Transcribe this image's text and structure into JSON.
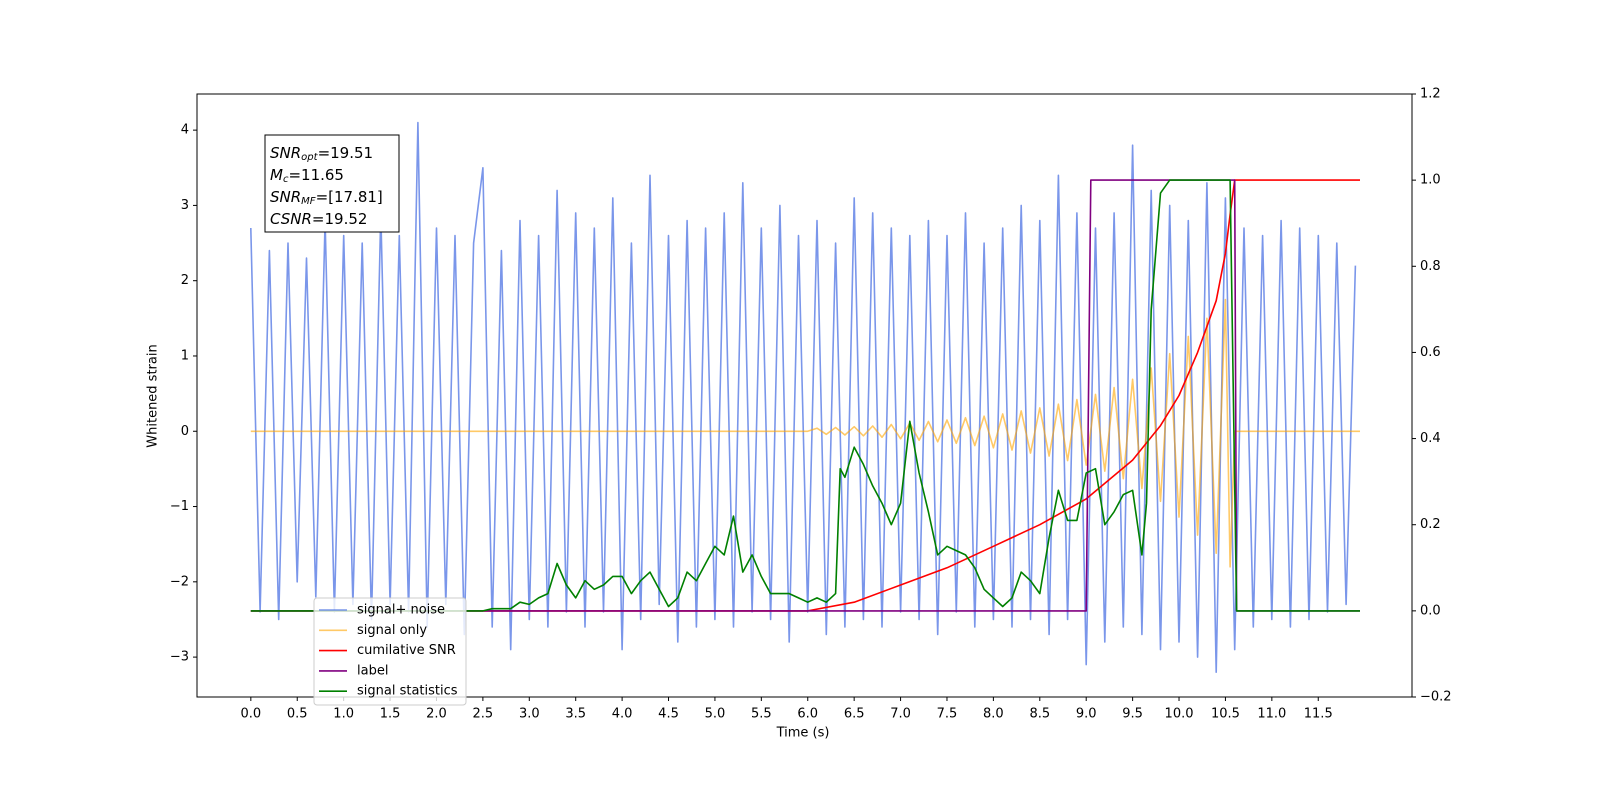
{
  "chart_data": {
    "type": "line",
    "x_label": "Time (s)",
    "y_label": "Whitened strain",
    "xlim": [
      -0.58,
      12.51
    ],
    "ylim": [
      -3.53,
      4.48
    ],
    "y2lim": [
      -0.2,
      1.2
    ],
    "xticks": [
      {
        "value": 0,
        "label": "0.0"
      },
      0.5,
      {
        "value": 1,
        "label": "1.0"
      },
      1.5,
      {
        "value": 2,
        "label": "2.0"
      },
      2.5,
      {
        "value": 3,
        "label": "3.0"
      },
      3.5,
      {
        "value": 4,
        "label": "4.0"
      },
      4.5,
      {
        "value": 5,
        "label": "5.0"
      },
      5.5,
      {
        "value": 6,
        "label": "6.0"
      },
      6.5,
      {
        "value": 7,
        "label": "7.0"
      },
      7.5,
      {
        "value": 8,
        "label": "8.0"
      },
      8.5,
      {
        "value": 9,
        "label": "9.0"
      },
      9.5,
      {
        "value": 10,
        "label": "10.0"
      },
      10.5,
      {
        "value": 11,
        "label": "11.0"
      },
      11.5
    ],
    "yticks": [
      {
        "value": -3,
        "label": "−3"
      },
      {
        "value": -2,
        "label": "−2"
      },
      {
        "value": -1,
        "label": "−1"
      },
      0,
      1,
      2,
      3,
      4
    ],
    "y2ticks": [
      {
        "value": -0.2,
        "label": "−0.2"
      },
      {
        "value": 0,
        "label": "0.0"
      },
      0.2,
      0.4,
      0.6,
      0.8,
      {
        "value": 1,
        "label": "1.0"
      },
      1.2
    ],
    "legend_loc": "lower left",
    "annotations": [
      {
        "var": "SNR",
        "sub": "opt",
        "text": "=19.51"
      },
      {
        "var": "M",
        "sub": "c",
        "text": "=11.65"
      },
      {
        "var": "SNR",
        "sub": "MF",
        "text": "=[17.81]"
      },
      {
        "var": "CSNR",
        "sub": null,
        "text": "=19.52"
      }
    ],
    "series": [
      {
        "name": "signal+ noise",
        "color": "#4169e1",
        "alpha": 0.7,
        "axis": "y",
        "x": [
          0.0,
          0.1,
          0.2,
          0.3,
          0.4,
          0.5,
          0.6,
          0.7,
          0.8,
          0.9,
          1.0,
          1.1,
          1.2,
          1.3,
          1.4,
          1.5,
          1.6,
          1.7,
          1.8,
          1.9,
          2.0,
          2.1,
          2.2,
          2.3,
          2.4,
          2.5,
          2.6,
          2.7,
          2.8,
          2.9,
          3.0,
          3.1,
          3.2,
          3.3,
          3.4,
          3.5,
          3.6,
          3.7,
          3.8,
          3.9,
          4.0,
          4.1,
          4.2,
          4.3,
          4.4,
          4.5,
          4.6,
          4.7,
          4.8,
          4.9,
          5.0,
          5.1,
          5.2,
          5.3,
          5.4,
          5.5,
          5.6,
          5.7,
          5.8,
          5.9,
          6.0,
          6.1,
          6.2,
          6.3,
          6.4,
          6.5,
          6.6,
          6.7,
          6.8,
          6.9,
          7.0,
          7.1,
          7.2,
          7.3,
          7.4,
          7.5,
          7.6,
          7.7,
          7.8,
          7.9,
          8.0,
          8.1,
          8.2,
          8.3,
          8.4,
          8.5,
          8.6,
          8.7,
          8.8,
          8.9,
          9.0,
          9.1,
          9.2,
          9.3,
          9.4,
          9.5,
          9.6,
          9.7,
          9.8,
          9.9,
          10.0,
          10.1,
          10.2,
          10.3,
          10.4,
          10.5,
          10.6,
          10.7,
          10.8,
          10.9,
          11.0,
          11.1,
          11.2,
          11.3,
          11.4,
          11.5,
          11.6,
          11.7,
          11.8,
          11.9
        ],
        "values": [
          2.7,
          -2.4,
          2.4,
          -2.5,
          2.5,
          -2.0,
          2.3,
          -2.2,
          2.8,
          -2.4,
          2.6,
          -2.3,
          2.5,
          -2.5,
          2.9,
          -2.3,
          2.6,
          -2.4,
          4.1,
          -2.6,
          2.7,
          -2.3,
          2.6,
          -2.7,
          2.5,
          3.5,
          -2.6,
          2.4,
          -2.9,
          2.8,
          -2.5,
          2.6,
          -2.6,
          3.2,
          -2.4,
          2.9,
          -2.6,
          2.7,
          -2.4,
          3.1,
          -2.9,
          2.5,
          -2.5,
          3.4,
          -2.3,
          2.6,
          -2.8,
          2.8,
          -2.6,
          2.7,
          -2.5,
          2.9,
          -2.6,
          3.3,
          -2.4,
          2.7,
          -2.5,
          3.0,
          -2.8,
          2.6,
          -2.4,
          2.8,
          -2.7,
          2.5,
          -2.6,
          3.1,
          -2.5,
          2.9,
          -2.6,
          2.7,
          -2.4,
          2.6,
          -2.5,
          2.8,
          -2.7,
          2.6,
          -2.4,
          2.9,
          -2.6,
          2.5,
          -2.5,
          2.7,
          -2.6,
          3.0,
          -2.5,
          2.8,
          -2.7,
          3.4,
          -2.5,
          2.9,
          -3.1,
          2.7,
          -2.8,
          2.9,
          -2.6,
          3.8,
          -2.7,
          3.2,
          -2.9,
          3.0,
          -2.8,
          2.8,
          -3.0,
          3.3,
          -3.2,
          3.1,
          -2.9,
          2.7,
          -2.6,
          2.6,
          -2.5,
          2.8,
          -2.6,
          2.7,
          -2.5,
          2.6,
          -2.4,
          2.5,
          -2.3,
          2.2
        ]
      },
      {
        "name": "signal only",
        "color": "#ffa500",
        "alpha": 0.6,
        "axis": "y",
        "x": [
          0.0,
          6.0,
          6.1,
          6.2,
          6.3,
          6.4,
          6.5,
          6.6,
          6.7,
          6.8,
          6.9,
          7.0,
          7.1,
          7.2,
          7.3,
          7.4,
          7.5,
          7.6,
          7.7,
          7.8,
          7.9,
          8.0,
          8.1,
          8.2,
          8.3,
          8.4,
          8.5,
          8.6,
          8.7,
          8.8,
          8.9,
          9.0,
          9.1,
          9.2,
          9.3,
          9.4,
          9.5,
          9.6,
          9.7,
          9.8,
          9.9,
          10.0,
          10.1,
          10.2,
          10.3,
          10.4,
          10.5,
          10.55,
          10.6,
          11.95
        ],
        "values": [
          0,
          0,
          0.04,
          -0.04,
          0.05,
          -0.05,
          0.06,
          -0.06,
          0.07,
          -0.08,
          0.09,
          -0.1,
          0.11,
          -0.12,
          0.13,
          -0.14,
          0.15,
          -0.16,
          0.18,
          -0.19,
          0.2,
          -0.22,
          0.23,
          -0.25,
          0.27,
          -0.29,
          0.31,
          -0.33,
          0.36,
          -0.39,
          0.42,
          -0.45,
          0.49,
          -0.53,
          0.58,
          -0.63,
          0.69,
          -0.76,
          0.84,
          -0.93,
          1.03,
          -1.14,
          1.26,
          -1.38,
          1.5,
          -1.62,
          1.75,
          -1.8,
          0,
          0
        ]
      },
      {
        "name": "cumilative SNR",
        "color": "#ff0000",
        "alpha": 1,
        "axis": "y2",
        "x": [
          0.0,
          6.0,
          6.5,
          7.0,
          7.5,
          8.0,
          8.5,
          9.0,
          9.5,
          9.8,
          10.0,
          10.2,
          10.4,
          10.5,
          10.55,
          10.6,
          11.95
        ],
        "values": [
          0,
          0,
          0.02,
          0.06,
          0.1,
          0.15,
          0.2,
          0.26,
          0.35,
          0.43,
          0.5,
          0.6,
          0.72,
          0.83,
          0.92,
          1.0,
          1.0
        ]
      },
      {
        "name": "label",
        "color": "#800080",
        "alpha": 1,
        "axis": "y2",
        "x": [
          0.0,
          9.0,
          9.05,
          10.6,
          10.62,
          11.95
        ],
        "values": [
          0,
          0,
          1,
          1,
          0,
          0
        ]
      },
      {
        "name": "signal statistics",
        "color": "#008000",
        "alpha": 1,
        "axis": "y2",
        "x": [
          0.0,
          2.5,
          2.6,
          2.8,
          2.9,
          3.0,
          3.1,
          3.2,
          3.3,
          3.4,
          3.5,
          3.6,
          3.7,
          3.8,
          3.9,
          4.0,
          4.1,
          4.2,
          4.3,
          4.4,
          4.5,
          4.6,
          4.7,
          4.8,
          4.9,
          5.0,
          5.1,
          5.2,
          5.3,
          5.4,
          5.5,
          5.6,
          5.7,
          5.8,
          5.9,
          6.0,
          6.1,
          6.2,
          6.3,
          6.35,
          6.4,
          6.5,
          6.6,
          6.7,
          6.8,
          6.9,
          7.0,
          7.1,
          7.2,
          7.3,
          7.4,
          7.5,
          7.6,
          7.7,
          7.8,
          7.9,
          8.0,
          8.1,
          8.2,
          8.3,
          8.4,
          8.5,
          8.6,
          8.7,
          8.8,
          8.9,
          9.0,
          9.1,
          9.2,
          9.3,
          9.4,
          9.5,
          9.6,
          9.65,
          9.7,
          9.8,
          9.9,
          10.0,
          10.55,
          10.62,
          11.95
        ],
        "values": [
          0,
          0,
          0.005,
          0.005,
          0.02,
          0.015,
          0.03,
          0.04,
          0.11,
          0.06,
          0.03,
          0.07,
          0.05,
          0.06,
          0.08,
          0.08,
          0.04,
          0.07,
          0.09,
          0.05,
          0.01,
          0.03,
          0.09,
          0.07,
          0.11,
          0.15,
          0.13,
          0.22,
          0.09,
          0.13,
          0.08,
          0.04,
          0.04,
          0.04,
          0.03,
          0.02,
          0.03,
          0.02,
          0.04,
          0.33,
          0.31,
          0.38,
          0.34,
          0.29,
          0.25,
          0.2,
          0.25,
          0.44,
          0.32,
          0.23,
          0.13,
          0.15,
          0.14,
          0.13,
          0.1,
          0.05,
          0.03,
          0.01,
          0.03,
          0.09,
          0.07,
          0.04,
          0.17,
          0.28,
          0.21,
          0.21,
          0.32,
          0.33,
          0.2,
          0.23,
          0.27,
          0.28,
          0.13,
          0.25,
          0.7,
          0.97,
          1.0,
          1.0,
          1.0,
          0,
          0
        ]
      }
    ]
  }
}
